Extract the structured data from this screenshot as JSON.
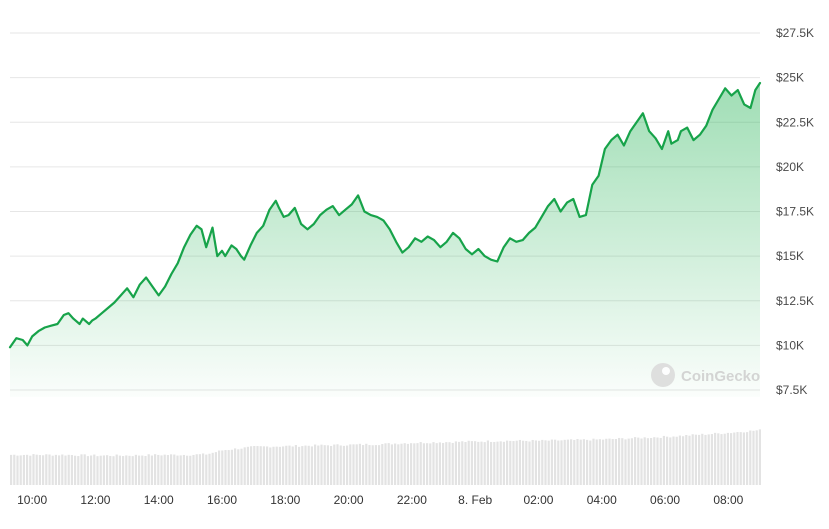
{
  "chart_data": {
    "type": "area",
    "watermark": "CoinGecko",
    "colors": {
      "line": "#17a34a",
      "fill": "#2bb55a",
      "volume": "#e3e3e3",
      "grid": "#e6e6e6"
    },
    "y_ticks": [
      {
        "value": 7500,
        "label": "$7.5K"
      },
      {
        "value": 10000,
        "label": "$10K"
      },
      {
        "value": 12500,
        "label": "$12.5K"
      },
      {
        "value": 15000,
        "label": "$15K"
      },
      {
        "value": 17500,
        "label": "$17.5K"
      },
      {
        "value": 20000,
        "label": "$20K"
      },
      {
        "value": 22500,
        "label": "$22.5K"
      },
      {
        "value": 25000,
        "label": "$25K"
      },
      {
        "value": 27500,
        "label": "$27.5K"
      }
    ],
    "x_ticks": [
      {
        "hour": 10,
        "label": "10:00"
      },
      {
        "hour": 12,
        "label": "12:00"
      },
      {
        "hour": 14,
        "label": "14:00"
      },
      {
        "hour": 16,
        "label": "16:00"
      },
      {
        "hour": 18,
        "label": "18:00"
      },
      {
        "hour": 20,
        "label": "20:00"
      },
      {
        "hour": 22,
        "label": "22:00"
      },
      {
        "hour": 24,
        "label": "8. Feb"
      },
      {
        "hour": 26,
        "label": "02:00"
      },
      {
        "hour": 28,
        "label": "04:00"
      },
      {
        "hour": 30,
        "label": "06:00"
      },
      {
        "hour": 32,
        "label": "08:00"
      }
    ],
    "x_range": [
      9.3,
      33.0
    ],
    "ylim": [
      5000,
      28500
    ],
    "grid": true,
    "series": [
      {
        "x": [
          9.3,
          9.5,
          9.7,
          9.85,
          10.0,
          10.2,
          10.4,
          10.6,
          10.8,
          11.0,
          11.15,
          11.3,
          11.5,
          11.6,
          11.8,
          11.9,
          12.0,
          12.2,
          12.4,
          12.6,
          12.8,
          13.0,
          13.2,
          13.4,
          13.6,
          13.8,
          14.0,
          14.2,
          14.4,
          14.6,
          14.8,
          15.0,
          15.2,
          15.35,
          15.5,
          15.7,
          15.85,
          16.0,
          16.1,
          16.3,
          16.45,
          16.6,
          16.7,
          16.9,
          17.1,
          17.3,
          17.5,
          17.7,
          17.8,
          17.95,
          18.1,
          18.3,
          18.5,
          18.7,
          18.9,
          19.1,
          19.3,
          19.5,
          19.7,
          19.9,
          20.1,
          20.3,
          20.5,
          20.7,
          20.9,
          21.1,
          21.3,
          21.5,
          21.7,
          21.9,
          22.1,
          22.3,
          22.5,
          22.7,
          22.9,
          23.1,
          23.3,
          23.5,
          23.7,
          23.9,
          24.1,
          24.3,
          24.5,
          24.7,
          24.9,
          25.1,
          25.3,
          25.5,
          25.7,
          25.9,
          26.1,
          26.3,
          26.5,
          26.7,
          26.9,
          27.1,
          27.3,
          27.5,
          27.7,
          27.9,
          28.1,
          28.3,
          28.5,
          28.7,
          28.9,
          29.1,
          29.3,
          29.5,
          29.7,
          29.9,
          30.1,
          30.2,
          30.4,
          30.5,
          30.7,
          30.9,
          31.1,
          31.3,
          31.5,
          31.7,
          31.9,
          32.1,
          32.3,
          32.5,
          32.7,
          32.85,
          33.0
        ],
        "y": [
          9900,
          10400,
          10300,
          10000,
          10500,
          10800,
          11000,
          11100,
          11200,
          11700,
          11800,
          11500,
          11200,
          11500,
          11200,
          11400,
          11500,
          11800,
          12100,
          12400,
          12800,
          13200,
          12700,
          13400,
          13800,
          13300,
          12800,
          13300,
          14000,
          14600,
          15500,
          16200,
          16700,
          16500,
          15500,
          16600,
          15000,
          15300,
          15000,
          15600,
          15400,
          15000,
          14800,
          15600,
          16300,
          16700,
          17600,
          18100,
          17700,
          17200,
          17300,
          17700,
          16800,
          16500,
          16800,
          17300,
          17600,
          17800,
          17300,
          17600,
          17900,
          18400,
          17500,
          17300,
          17200,
          17000,
          16500,
          15800,
          15200,
          15500,
          16000,
          15800,
          16100,
          15900,
          15500,
          15800,
          16300,
          16000,
          15400,
          15100,
          15400,
          15000,
          14800,
          14700,
          15500,
          16000,
          15800,
          15900,
          16300,
          16600,
          17200,
          17800,
          18200,
          17500,
          18000,
          18200,
          17200,
          17300,
          19000,
          19500,
          21000,
          21500,
          21800,
          21200,
          22000,
          22500,
          23000,
          22000,
          21600,
          21000,
          22000,
          21300,
          21500,
          22000,
          22200,
          21500,
          21800,
          22300,
          23200,
          23800,
          24400,
          24000,
          24300,
          23500,
          23300,
          24300,
          24700
        ]
      }
    ],
    "volume": {
      "x": [
        9.3,
        10.0,
        11.0,
        12.0,
        13.0,
        14.0,
        15.0,
        15.5,
        16.0,
        17.0,
        18.0,
        19.0,
        20.0,
        21.0,
        22.0,
        23.0,
        24.0,
        25.0,
        26.0,
        27.0,
        28.0,
        29.0,
        30.0,
        31.0,
        32.0,
        32.5,
        33.0
      ],
      "y": [
        0.45,
        0.45,
        0.45,
        0.44,
        0.44,
        0.45,
        0.45,
        0.46,
        0.52,
        0.57,
        0.58,
        0.59,
        0.6,
        0.61,
        0.63,
        0.64,
        0.65,
        0.66,
        0.66,
        0.67,
        0.68,
        0.7,
        0.72,
        0.75,
        0.78,
        0.8,
        0.82
      ]
    }
  }
}
